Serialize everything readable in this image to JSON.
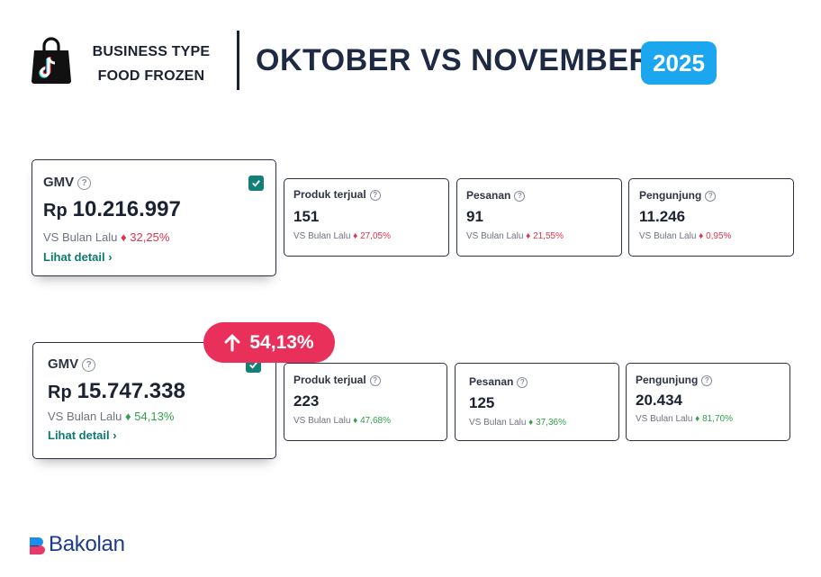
{
  "header": {
    "business_type_line1": "BUSINESS TYPE",
    "business_type_line2": "FOOD FROZEN",
    "title": "OKTOBER VS NOVEMBER",
    "year": "2025",
    "year_color": "#1da6f0"
  },
  "rows": [
    {
      "gmv": {
        "label": "GMV",
        "currency": "Rp",
        "value": "10.216.997",
        "compare_label": "VS Bulan Lalu",
        "change": "32,25%",
        "direction": "down",
        "link": "Lihat detail ›"
      },
      "metrics": [
        {
          "label": "Produk terjual",
          "value": "151",
          "compare_label": "VS Bulan Lalu",
          "change": "27,05%",
          "direction": "down"
        },
        {
          "label": "Pesanan",
          "value": "91",
          "compare_label": "VS Bulan Lalu",
          "change": "21,55%",
          "direction": "down"
        },
        {
          "label": "Pengunjung",
          "value": "11.246",
          "compare_label": "VS Bulan Lalu",
          "change": "0,95%",
          "direction": "down"
        }
      ]
    },
    {
      "gmv": {
        "label": "GMV",
        "currency": "Rp",
        "value": "15.747.338",
        "compare_label": "VS Bulan Lalu",
        "change": "54,13%",
        "direction": "up",
        "link": "Lihat detail ›"
      },
      "metrics": [
        {
          "label": "Produk terjual",
          "value": "223",
          "compare_label": "VS Bulan Lalu",
          "change": "47,68%",
          "direction": "up"
        },
        {
          "label": "Pesanan",
          "value": "125",
          "compare_label": "VS Bulan Lalu",
          "change": "37,36%",
          "direction": "up"
        },
        {
          "label": "Pengunjung",
          "value": "20.434",
          "compare_label": "VS Bulan Lalu",
          "change": "81,70%",
          "direction": "up"
        }
      ]
    }
  ],
  "growth_badge": {
    "text": "54,13%",
    "icon": "arrow-up-icon",
    "color": "#e8305a"
  },
  "help_icon": "?",
  "check_icon": "checkmark-icon",
  "colors": {
    "negative": "#e0334e",
    "positive": "#2fa24a",
    "link": "#0d7a6f"
  },
  "brand": {
    "name": "Bakolan"
  }
}
